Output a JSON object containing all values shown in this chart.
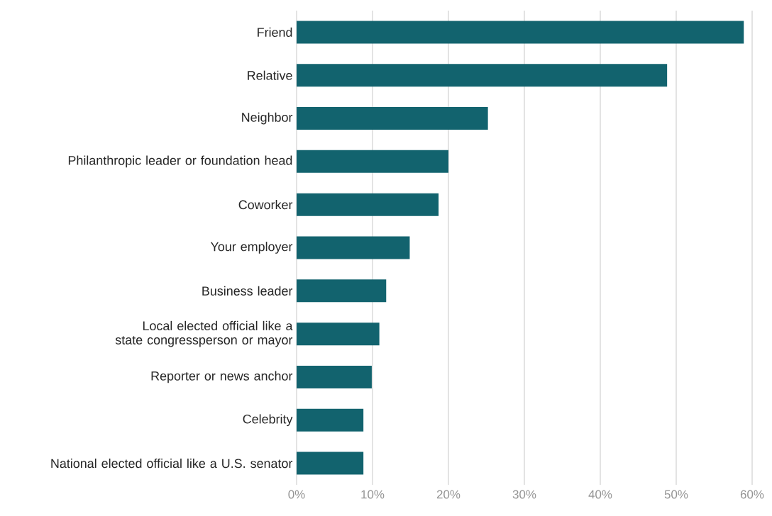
{
  "chart_data": {
    "type": "bar",
    "orientation": "horizontal",
    "categories": [
      "Friend",
      "Relative",
      "Neighbor",
      "Philanthropic leader or foundation head",
      "Coworker",
      "Your employer",
      "Business leader",
      "Local elected official like a state congressperson or mayor",
      "Reporter or news anchor",
      "Celebrity",
      "National elected official like a U.S. senator"
    ],
    "values": [
      58.9,
      48.8,
      25.2,
      20,
      18.7,
      14.9,
      11.8,
      10.9,
      9.9,
      8.8,
      8.8
    ],
    "color": "#12636e",
    "xlim": [
      0,
      60
    ],
    "xticks": [
      {
        "value": 0,
        "label": "0%"
      },
      {
        "value": 10,
        "label": "10%"
      },
      {
        "value": 20,
        "label": "20%"
      },
      {
        "value": 30,
        "label": "30%"
      },
      {
        "value": 40,
        "label": "40%"
      },
      {
        "value": 50,
        "label": "50%"
      },
      {
        "value": 60,
        "label": "60%"
      }
    ],
    "grid": "x"
  }
}
